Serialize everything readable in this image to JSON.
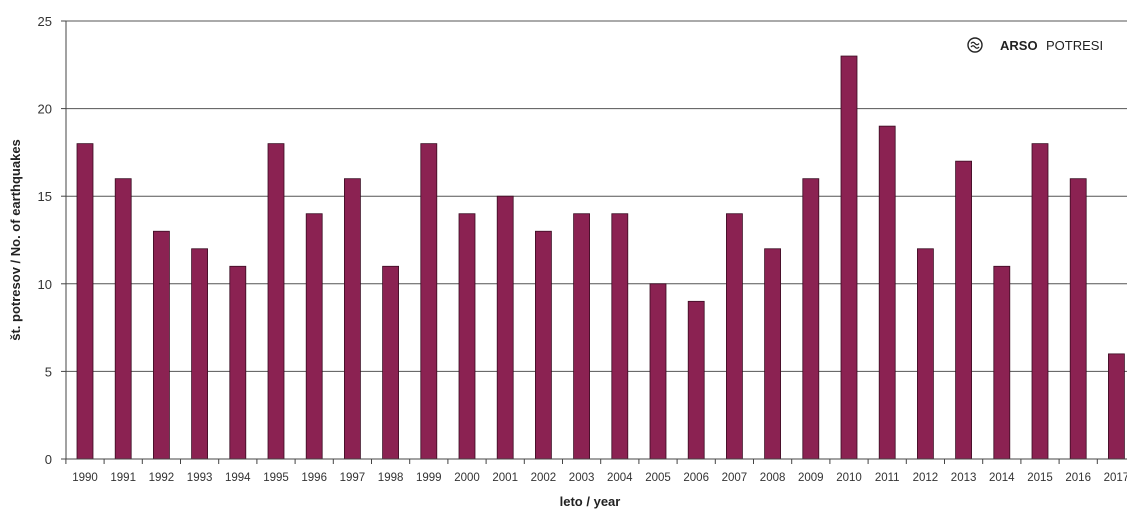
{
  "chart_data": {
    "type": "bar",
    "categories": [
      "1990",
      "1991",
      "1992",
      "1993",
      "1994",
      "1995",
      "1996",
      "1997",
      "1998",
      "1999",
      "2000",
      "2001",
      "2002",
      "2003",
      "2004",
      "2005",
      "2006",
      "2007",
      "2008",
      "2009",
      "2010",
      "2011",
      "2012",
      "2013",
      "2014",
      "2015",
      "2016",
      "2017"
    ],
    "values": [
      18,
      16,
      13,
      12,
      11,
      18,
      14,
      16,
      11,
      18,
      14,
      15,
      13,
      14,
      14,
      10,
      9,
      14,
      12,
      16,
      23,
      19,
      12,
      17,
      11,
      18,
      16,
      6
    ],
    "title": "",
    "xlabel": "leto / year",
    "ylabel": "št. potresov / No. of earthquakes",
    "ylim": [
      0,
      25
    ],
    "yticks": [
      0,
      5,
      10,
      15,
      20,
      25
    ],
    "grid": true,
    "bar_color": "#8b2252"
  },
  "logo": {
    "bold": "ARSO",
    "regular": "POTRESI",
    "icon": "arso-wave-icon"
  }
}
